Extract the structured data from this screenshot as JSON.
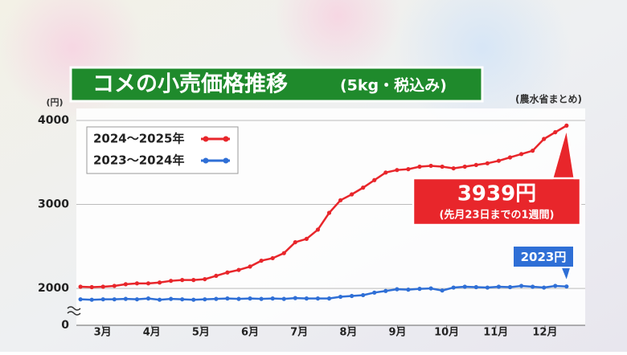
{
  "chart_data": {
    "type": "line",
    "title": "コメの小売価格推移",
    "subtitle": "(5kg・税込み)",
    "y_unit": "(円)",
    "source": "(農水省まとめ)",
    "x": [
      2.55,
      2.78,
      3.01,
      3.24,
      3.47,
      3.7,
      3.93,
      4.16,
      4.39,
      4.62,
      4.85,
      5.08,
      5.31,
      5.54,
      5.77,
      6.0,
      6.23,
      6.46,
      6.69,
      6.92,
      7.15,
      7.38,
      7.61,
      7.84,
      8.07,
      8.3,
      8.53,
      8.76,
      8.99,
      9.22,
      9.45,
      9.68,
      9.91,
      10.14,
      10.37,
      10.6,
      10.83,
      11.06,
      11.29,
      11.52,
      11.75,
      11.98,
      12.21,
      12.44
    ],
    "xlim": [
      2.45,
      12.95
    ],
    "xticks": [
      {
        "value": 3,
        "label": "3月"
      },
      {
        "value": 4,
        "label": "4月"
      },
      {
        "value": 5,
        "label": "5月"
      },
      {
        "value": 6,
        "label": "6月"
      },
      {
        "value": 7,
        "label": "7月"
      },
      {
        "value": 8,
        "label": "8月"
      },
      {
        "value": 9,
        "label": "9月"
      },
      {
        "value": 10,
        "label": "10月"
      },
      {
        "value": 11,
        "label": "11月"
      },
      {
        "value": 12,
        "label": "12月"
      }
    ],
    "ylim": [
      1580,
      4000
    ],
    "yticks": [
      0,
      2000,
      3000,
      4000
    ],
    "y_axis_break": true,
    "grid": true,
    "legend": "upper-left",
    "series": [
      {
        "name": "2024〜2025年",
        "color": "#e8262b",
        "values": [
          2020,
          2015,
          2020,
          2030,
          2050,
          2060,
          2060,
          2070,
          2090,
          2100,
          2100,
          2110,
          2150,
          2190,
          2220,
          2260,
          2330,
          2360,
          2420,
          2550,
          2590,
          2700,
          2900,
          3050,
          3120,
          3200,
          3290,
          3380,
          3410,
          3420,
          3450,
          3460,
          3450,
          3430,
          3450,
          3470,
          3490,
          3520,
          3560,
          3600,
          3640,
          3780,
          3860,
          3939
        ]
      },
      {
        "name": "2023〜2024年",
        "color": "#2f6fd6",
        "values": [
          1870,
          1865,
          1870,
          1870,
          1875,
          1870,
          1880,
          1865,
          1875,
          1870,
          1865,
          1870,
          1875,
          1880,
          1875,
          1880,
          1875,
          1880,
          1875,
          1885,
          1880,
          1880,
          1880,
          1900,
          1910,
          1920,
          1950,
          1970,
          1990,
          1985,
          1995,
          2000,
          1975,
          2010,
          2020,
          2015,
          2010,
          2020,
          2015,
          2030,
          2020,
          2010,
          2030,
          2023
        ]
      }
    ],
    "annotations": [
      {
        "text": "3939円",
        "note": "(先月23日までの1週間)"
      },
      {
        "text": "2023円"
      }
    ]
  }
}
